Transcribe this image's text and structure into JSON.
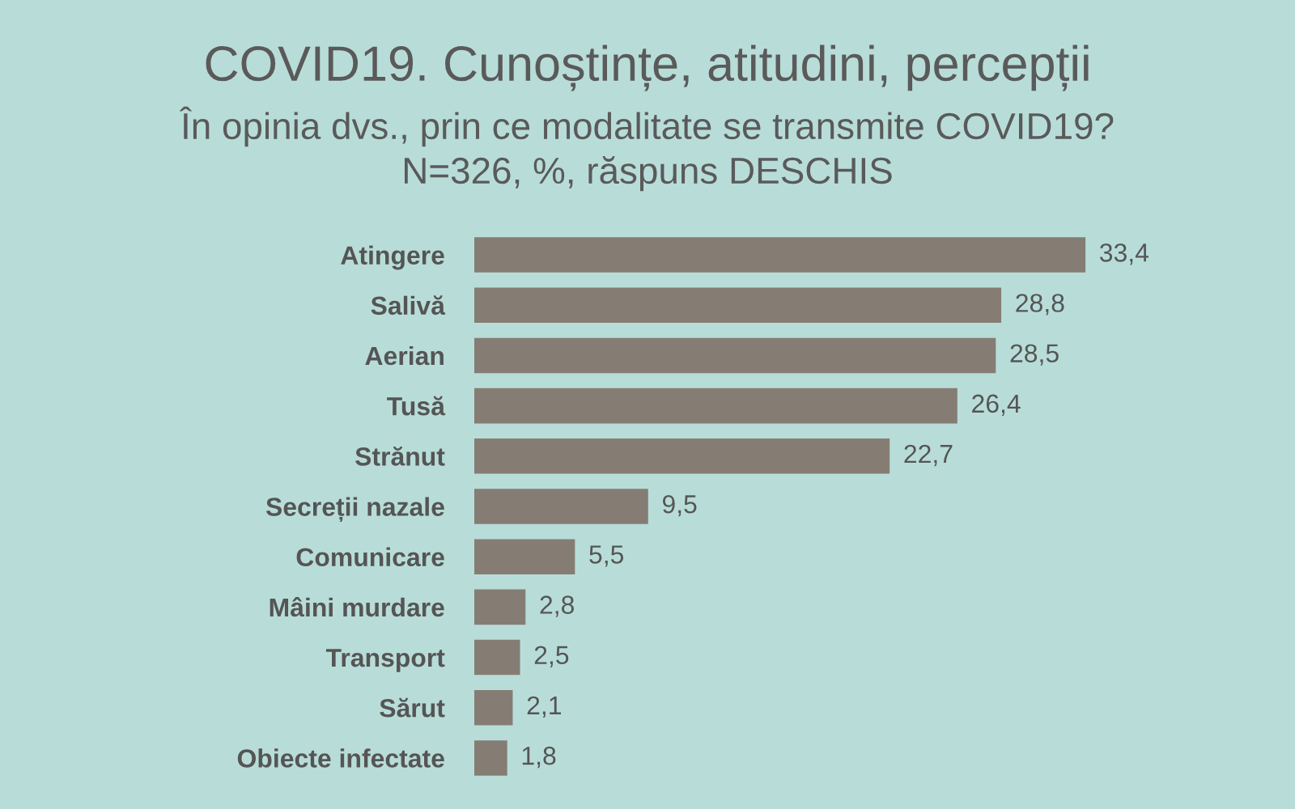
{
  "chart_data": {
    "type": "bar",
    "orientation": "horizontal",
    "title": "COVID19. Cunoștințe, atitudini, percepții",
    "subtitle": "În opinia dvs., prin ce modalitate se transmite COVID19?\nN=326, %, răspuns DESCHIS",
    "categories": [
      "Atingere",
      "Salivă",
      "Aerian",
      "Tusă",
      "Strănut",
      "Secreții nazale",
      "Comunicare",
      "Mâini murdare",
      "Transport",
      "Sărut",
      "Obiecte infectate"
    ],
    "values": [
      33.4,
      28.8,
      28.5,
      26.4,
      22.7,
      9.5,
      5.5,
      2.8,
      2.5,
      2.1,
      1.8
    ],
    "value_labels": [
      "33,4",
      "28,8",
      "28,5",
      "26,4",
      "22,7",
      "9,5",
      "5,5",
      "2,8",
      "2,5",
      "2,1",
      "1,8"
    ],
    "color": "#857d74",
    "tick_labels": "y"
  }
}
